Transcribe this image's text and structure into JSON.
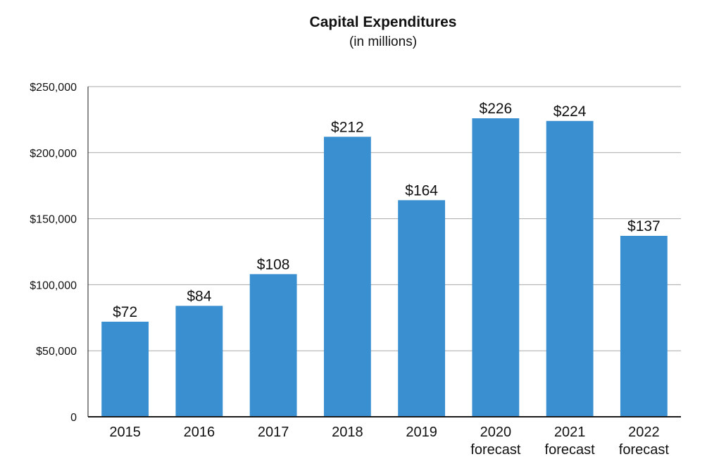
{
  "chart_data": {
    "type": "bar",
    "title": "Capital Expenditures",
    "subtitle": "(in millions)",
    "categories": [
      [
        "2015"
      ],
      [
        "2016"
      ],
      [
        "2017"
      ],
      [
        "2018"
      ],
      [
        "2019"
      ],
      [
        "2020",
        "forecast"
      ],
      [
        "2021",
        "forecast"
      ],
      [
        "2022",
        "forecast"
      ]
    ],
    "values": [
      72000,
      84000,
      108000,
      212000,
      164000,
      226000,
      224000,
      137000
    ],
    "data_labels": [
      "$72",
      "$84",
      "$108",
      "$212",
      "$164",
      "$226",
      "$224",
      "$137"
    ],
    "yticks": [
      0,
      50000,
      100000,
      150000,
      200000,
      250000
    ],
    "ytick_labels": [
      "0",
      "$50,000",
      "$100,000",
      "$150,000",
      "$200,000",
      "$250,000"
    ],
    "ylim": [
      0,
      250000
    ],
    "grid": true,
    "colors": {
      "bar": "#3a8fd0",
      "grid": "#a9a9a9",
      "axis": "#1a1a1a"
    }
  }
}
